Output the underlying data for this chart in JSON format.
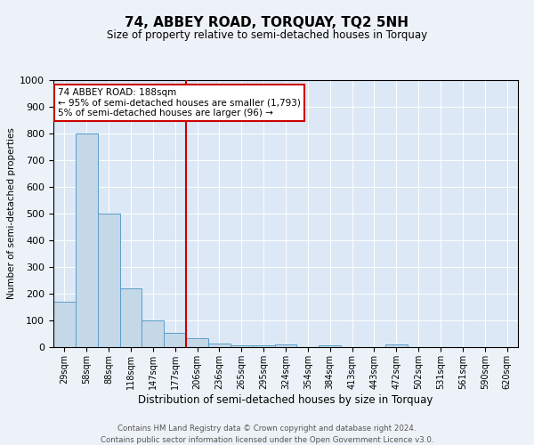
{
  "title": "74, ABBEY ROAD, TORQUAY, TQ2 5NH",
  "subtitle": "Size of property relative to semi-detached houses in Torquay",
  "xlabel": "Distribution of semi-detached houses by size in Torquay",
  "ylabel": "Number of semi-detached properties",
  "footnote1": "Contains HM Land Registry data © Crown copyright and database right 2024.",
  "footnote2": "Contains public sector information licensed under the Open Government Licence v3.0.",
  "categories": [
    "29sqm",
    "58sqm",
    "88sqm",
    "118sqm",
    "147sqm",
    "177sqm",
    "206sqm",
    "236sqm",
    "265sqm",
    "295sqm",
    "324sqm",
    "354sqm",
    "384sqm",
    "413sqm",
    "443sqm",
    "472sqm",
    "502sqm",
    "531sqm",
    "561sqm",
    "590sqm",
    "620sqm"
  ],
  "values": [
    170,
    800,
    500,
    220,
    100,
    55,
    35,
    15,
    8,
    8,
    10,
    0,
    8,
    0,
    0,
    10,
    0,
    0,
    0,
    0,
    0
  ],
  "bar_color": "#c5d8e8",
  "bar_edge_color": "#5a9ec9",
  "property_line_x": 5.5,
  "property_sqm": 188,
  "annotation_text1": "74 ABBEY ROAD: 188sqm",
  "annotation_text2": "← 95% of semi-detached houses are smaller (1,793)",
  "annotation_text3": "5% of semi-detached houses are larger (96) →",
  "annotation_box_color": "#ffffff",
  "annotation_box_edge": "#cc0000",
  "line_color": "#cc0000",
  "ylim": [
    0,
    1000
  ],
  "background_color": "#edf2f8",
  "plot_bg_color": "#dce8f5"
}
